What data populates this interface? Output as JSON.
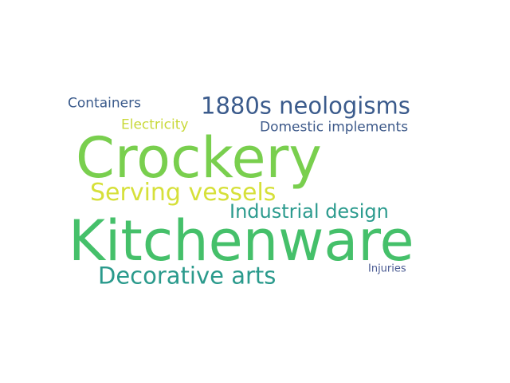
{
  "words": [
    {
      "text": "Containers",
      "color": "#3b5b8c"
    },
    {
      "text": "1880s neologisms",
      "color": "#3b5b8c"
    },
    {
      "text": "Electricity",
      "color": "#c9d93a"
    },
    {
      "text": "Domestic implements",
      "color": "#3e5a8a"
    },
    {
      "text": "Crockery",
      "color": "#79cf4e"
    },
    {
      "text": "Serving vessels",
      "color": "#d6e03a"
    },
    {
      "text": "Industrial design",
      "color": "#2c9b8e"
    },
    {
      "text": "Kitchenware",
      "color": "#45c06a"
    },
    {
      "text": "Decorative arts",
      "color": "#2a9a8c"
    },
    {
      "text": "Injuries",
      "color": "#4a5a92"
    }
  ]
}
